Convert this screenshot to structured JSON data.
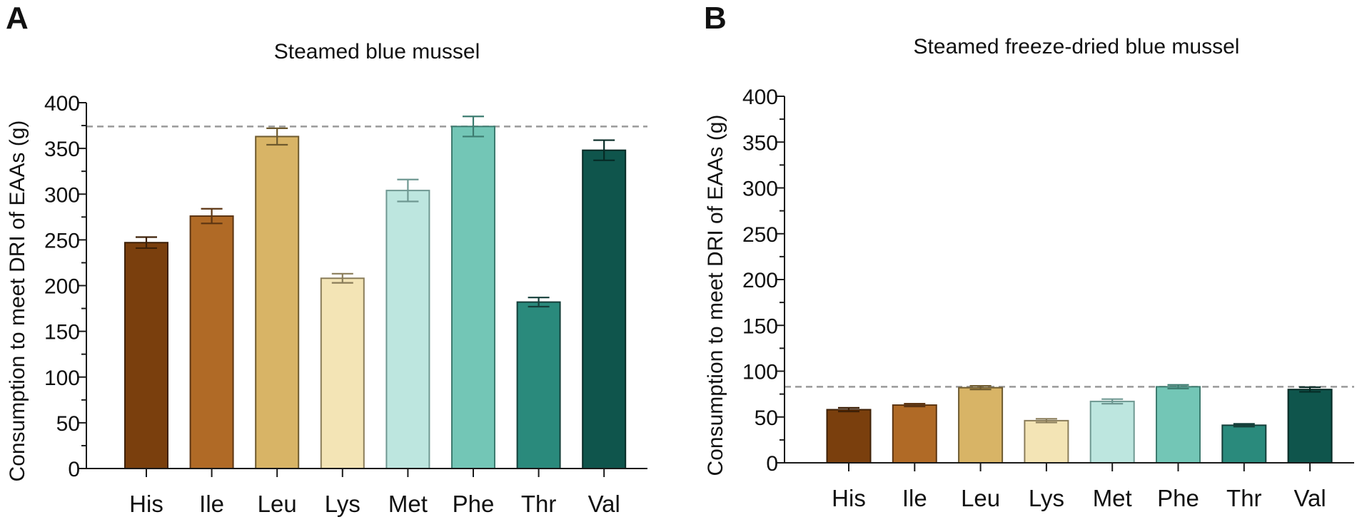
{
  "chart_data": [
    {
      "type": "bar",
      "panel_label": "A",
      "title": "Steamed blue mussel",
      "xlabel": "",
      "ylabel": "Consumption to meet DRI of EAAs (g)",
      "ylim": [
        0,
        400
      ],
      "yticks": [
        "0",
        "50",
        "100",
        "150",
        "200",
        "250",
        "300",
        "350",
        "400"
      ],
      "categories": [
        "His",
        "Ile",
        "Leu",
        "Lys",
        "Met",
        "Phe",
        "Thr",
        "Val"
      ],
      "values": [
        247,
        276,
        363,
        208,
        304,
        374,
        182,
        348
      ],
      "errors": [
        6,
        8,
        9,
        5,
        12,
        11,
        5,
        11
      ],
      "reference_line": 374,
      "colors": [
        "#7a3f0d",
        "#b06a26",
        "#d8b466",
        "#f3e4b5",
        "#bde6df",
        "#73c6b6",
        "#2a8a7c",
        "#0f554c"
      ],
      "error_colors": [
        "#3d2007",
        "#5c3512",
        "#6e5a2e",
        "#8a7d5a",
        "#6f9892",
        "#3d7c70",
        "#153f3a",
        "#062a25"
      ],
      "grid": false
    },
    {
      "type": "bar",
      "panel_label": "B",
      "title": "Steamed freeze-dried blue mussel",
      "xlabel": "",
      "ylabel": "Consumption to meet DRI of EAAs (g)",
      "ylim": [
        0,
        400
      ],
      "yticks": [
        "0",
        "50",
        "100",
        "150",
        "200",
        "250",
        "300",
        "350",
        "400"
      ],
      "categories": [
        "His",
        "Ile",
        "Leu",
        "Lys",
        "Met",
        "Phe",
        "Thr",
        "Val"
      ],
      "values": [
        58,
        63,
        82,
        46,
        67,
        83,
        41,
        80
      ],
      "errors": [
        2,
        1.5,
        2,
        2,
        2.5,
        2,
        1.5,
        2.5
      ],
      "reference_line": 83,
      "colors": [
        "#7a3f0d",
        "#b06a26",
        "#d8b466",
        "#f3e4b5",
        "#bde6df",
        "#73c6b6",
        "#2a8a7c",
        "#0f554c"
      ],
      "error_colors": [
        "#3d2007",
        "#5c3512",
        "#6e5a2e",
        "#8a7d5a",
        "#6f9892",
        "#3d7c70",
        "#153f3a",
        "#062a25"
      ],
      "grid": false
    }
  ]
}
